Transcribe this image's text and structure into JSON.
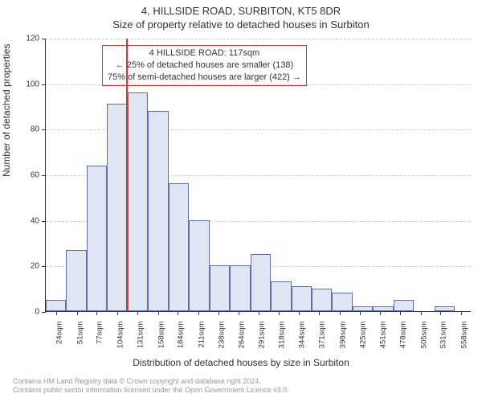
{
  "chart": {
    "type": "histogram",
    "title_main": "4, HILLSIDE ROAD, SURBITON, KT5 8DR",
    "title_sub": "Size of property relative to detached houses in Surbiton",
    "xlabel": "Distribution of detached houses by size in Surbiton",
    "ylabel": "Number of detached properties",
    "background_color": "#ffffff",
    "grid_color": "#cccccc",
    "axis_color": "#333333",
    "title_fontsize": 13,
    "label_fontsize": 12,
    "tick_fontsize": 10,
    "y": {
      "lim": [
        0,
        120
      ],
      "ticks": [
        0,
        20,
        40,
        60,
        80,
        100,
        120
      ]
    },
    "x": {
      "tick_labels": [
        "24sqm",
        "51sqm",
        "77sqm",
        "104sqm",
        "131sqm",
        "158sqm",
        "184sqm",
        "211sqm",
        "238sqm",
        "264sqm",
        "291sqm",
        "318sqm",
        "344sqm",
        "371sqm",
        "398sqm",
        "425sqm",
        "451sqm",
        "478sqm",
        "505sqm",
        "531sqm",
        "558sqm"
      ],
      "tick_positions": [
        24,
        51,
        77,
        104,
        131,
        158,
        184,
        211,
        238,
        264,
        291,
        318,
        344,
        371,
        398,
        425,
        451,
        478,
        505,
        531,
        558
      ],
      "range": [
        10,
        572
      ]
    },
    "bars": {
      "fill_color": "#dfe5f3",
      "border_color": "#6070a0",
      "width_units": 27,
      "starts": [
        10,
        37,
        64,
        91,
        118,
        145,
        172,
        199,
        226,
        253,
        280,
        307,
        334,
        361,
        388,
        415,
        442,
        469,
        496,
        523
      ],
      "values": [
        5,
        27,
        64,
        91,
        96,
        88,
        56,
        40,
        20,
        20,
        25,
        13,
        11,
        10,
        8,
        2,
        2,
        5,
        0,
        2
      ]
    },
    "reference": {
      "x_value": 117,
      "color": "#dd3333",
      "annotation_border_color": "#dd3333",
      "annotation_text_color": "#333333",
      "line1": "4 HILLSIDE ROAD: 117sqm",
      "line2": "← 25% of detached houses are smaller (138)",
      "line3": "75% of semi-detached houses are larger (422) →"
    },
    "credits": {
      "line1": "Contains HM Land Registry data © Crown copyright and database right 2024.",
      "line2": "Contains public sector information licensed under the Open Government Licence v3.0.",
      "color": "#999999"
    }
  }
}
